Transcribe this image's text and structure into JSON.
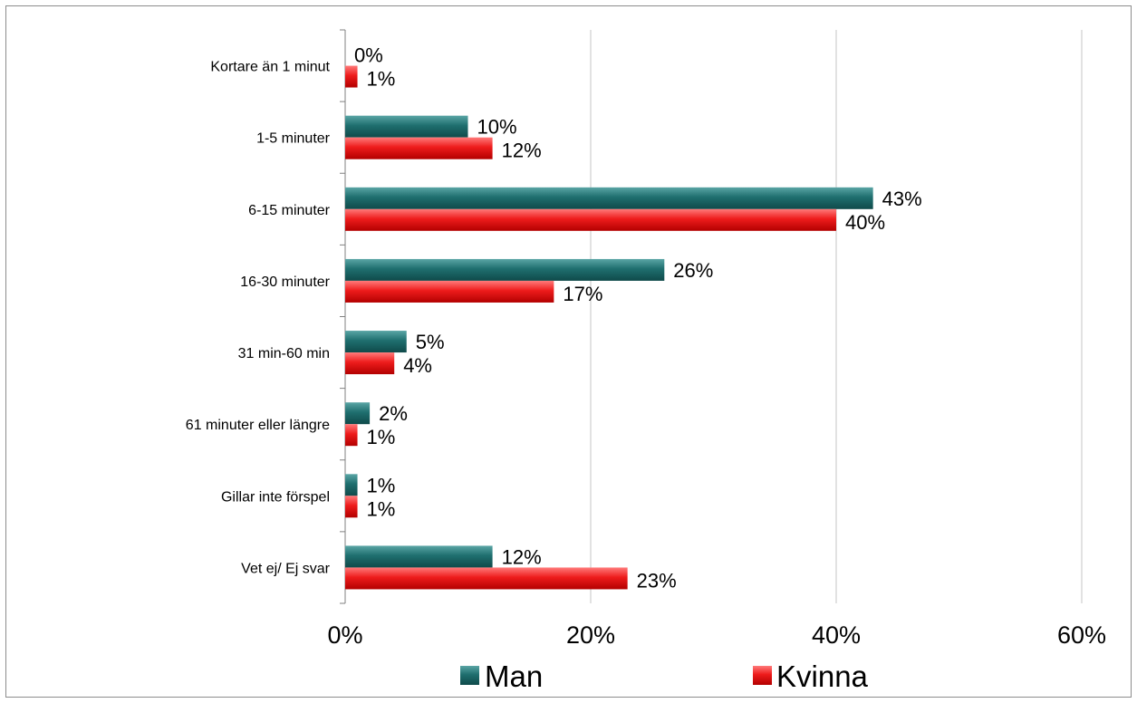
{
  "chart_data": {
    "type": "bar",
    "orientation": "horizontal",
    "categories": [
      "Kortare än 1 minut",
      "1-5 minuter",
      "6-15 minuter",
      "16-30 minuter",
      "31 min-60 min",
      "61 minuter eller längre",
      "Gillar inte förspel",
      "Vet ej/ Ej svar"
    ],
    "series": [
      {
        "name": "Man",
        "color": "#1f6f6f",
        "values": [
          0,
          10,
          43,
          26,
          5,
          2,
          1,
          12
        ],
        "labels": [
          "0%",
          "10%",
          "43%",
          "26%",
          "5%",
          "2%",
          "1%",
          "12%"
        ]
      },
      {
        "name": "Kvinna",
        "color": "#ee1c1c",
        "values": [
          1,
          12,
          40,
          17,
          4,
          1,
          1,
          23
        ],
        "labels": [
          "1%",
          "12%",
          "40%",
          "17%",
          "4%",
          "1%",
          "1%",
          "23%"
        ]
      }
    ],
    "xlim": [
      0,
      60
    ],
    "xticks": [
      0,
      20,
      40,
      60
    ],
    "xtick_labels": [
      "0%",
      "20%",
      "40%",
      "60%"
    ],
    "grid": "vertical",
    "legend": "bottom",
    "title": "",
    "xlabel": "",
    "ylabel": ""
  }
}
